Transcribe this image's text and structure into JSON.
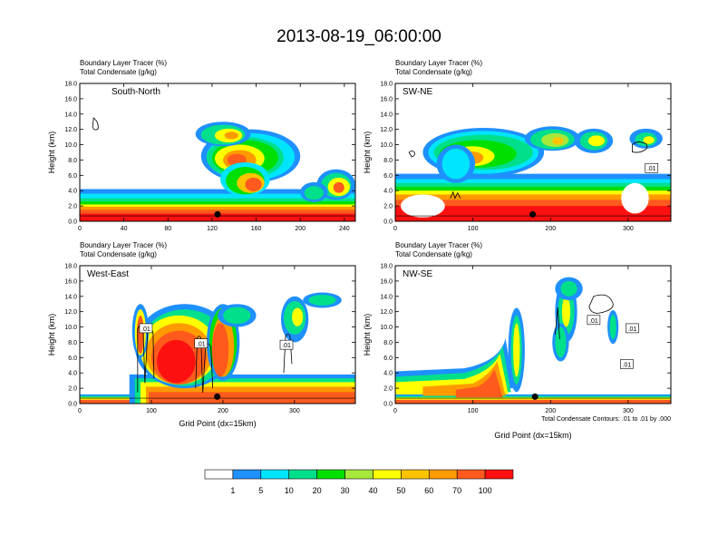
{
  "title": "2013-08-19_06:00:00",
  "colors": [
    "#ffffff",
    "#1e90ff",
    "#00e5ff",
    "#00e08a",
    "#00e000",
    "#a6e83c",
    "#ffff00",
    "#ffc400",
    "#ff9a00",
    "#ff5a1e",
    "#ff1010"
  ],
  "colorbar_labels": [
    "1",
    "5",
    "10",
    "20",
    "30",
    "40",
    "50",
    "60",
    "70",
    "100"
  ],
  "contour_note": "Total Condensate Contours: .01 to .01 by .000",
  "chart_data": [
    {
      "type": "heatmap",
      "panel_title_1": "Boundary Layer Tracer    (%)",
      "panel_title_2": "Total Condensate    (g/kg)",
      "region": "South-North",
      "ylabel": "Height (km)",
      "xlabel": "",
      "xlim": [
        0,
        250
      ],
      "xticks": [
        "0",
        "40",
        "80",
        "120",
        "160",
        "200",
        "240"
      ],
      "ylim": [
        0,
        18
      ],
      "yticks": [
        "0.0",
        "2.0",
        "4.0",
        "6.0",
        "8.0",
        "10.0",
        "12.0",
        "14.0",
        "16.0",
        "18.0"
      ],
      "contour_labels": [],
      "marker_x": 125
    },
    {
      "type": "heatmap",
      "panel_title_1": "Boundary Layer Tracer    (%)",
      "panel_title_2": "Total Condensate    (g/kg)",
      "region": "SW-NE",
      "ylabel": "Height (km)",
      "xlabel": "",
      "xlim": [
        0,
        355
      ],
      "xticks": [
        "0",
        "100",
        "200",
        "300"
      ],
      "ylim": [
        0,
        18
      ],
      "yticks": [
        "0.0",
        "2.0",
        "4.0",
        "6.0",
        "8.0",
        "10.0",
        "12.0",
        "14.0",
        "16.0",
        "18.0"
      ],
      "contour_labels": [
        ".01"
      ],
      "marker_x": 177
    },
    {
      "type": "heatmap",
      "panel_title_1": "Boundary Layer Tracer    (%)",
      "panel_title_2": "Total Condensate    (g/kg)",
      "region": "West-East",
      "ylabel": "Height (km)",
      "xlabel": "Grid Point (dx=15km)",
      "xlim": [
        0,
        385
      ],
      "xticks": [
        "0",
        "100",
        "200",
        "300"
      ],
      "ylim": [
        0,
        18
      ],
      "yticks": [
        "0.0",
        "2.0",
        "4.0",
        "6.0",
        "8.0",
        "10.0",
        "12.0",
        "14.0",
        "16.0",
        "18.0"
      ],
      "contour_labels": [
        ".01",
        ".01",
        ".01"
      ],
      "marker_x": 192
    },
    {
      "type": "heatmap",
      "panel_title_1": "Boundary Layer Tracer    (%)",
      "panel_title_2": "Total Condensate    (g/kg)",
      "region": "NW-SE",
      "ylabel": "Height (km)",
      "xlabel": "Grid Point (dx=15km)",
      "xlim": [
        0,
        355
      ],
      "xticks": [
        "0",
        "100",
        "200",
        "300"
      ],
      "ylim": [
        0,
        18
      ],
      "yticks": [
        "0.0",
        "2.0",
        "4.0",
        "6.0",
        "8.0",
        "10.0",
        "12.0",
        "14.0",
        "16.0",
        "18.0"
      ],
      "contour_labels": [
        ".01",
        ".01",
        ".01"
      ],
      "marker_x": 180
    }
  ]
}
